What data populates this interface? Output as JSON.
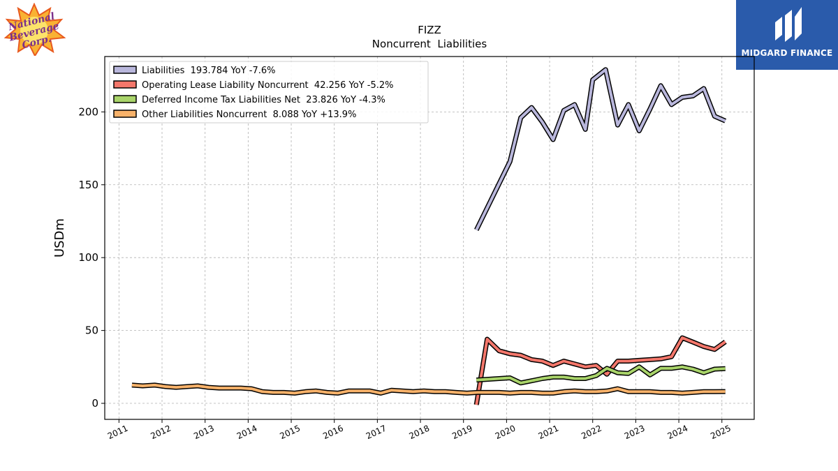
{
  "logos": {
    "left_brand": "National Beverage Corp.",
    "right_brand": "MIDGARD FINANCE"
  },
  "colors": {
    "liabilities": "#b9b7dc",
    "operating_lease": "#f4776b",
    "deferred_tax": "#a9d46a",
    "other": "#f8b26a",
    "brand_box": "#2a5bab"
  },
  "chart_data": {
    "type": "line",
    "title": "FIZZ",
    "subtitle": "Noncurrent  Liabilities",
    "xlabel": "",
    "ylabel": "USDm",
    "xlim": [
      2010.67,
      2025.75
    ],
    "ylim": [
      -11,
      238
    ],
    "yticks": [
      0,
      50,
      100,
      150,
      200
    ],
    "xticks": [
      "2011",
      "2012",
      "2013",
      "2014",
      "2015",
      "2016",
      "2017",
      "2018",
      "2019",
      "2020",
      "2021",
      "2022",
      "2023",
      "2024",
      "2025"
    ],
    "grid": true,
    "legend_position": "top-left",
    "series": [
      {
        "name": "Liabilities",
        "legend": "Liabilities  193.784 YoY -7.6%",
        "color": "#b9b7dc",
        "x": [
          2019.3,
          2020.08,
          2020.33,
          2020.58,
          2020.83,
          2021.08,
          2021.33,
          2021.58,
          2021.83,
          2022.0,
          2022.3,
          2022.58,
          2022.83,
          2023.08,
          2023.33,
          2023.58,
          2023.83,
          2024.08,
          2024.33,
          2024.58,
          2024.83,
          2025.08
        ],
        "y": [
          119,
          166,
          196,
          203,
          193,
          181,
          201,
          205,
          188,
          222,
          229,
          191,
          205,
          187,
          202,
          218,
          205,
          210,
          211,
          216,
          197,
          193.784
        ]
      },
      {
        "name": "Operating Lease Liability Noncurrent",
        "legend": "Operating Lease Liability Noncurrent  42.256 YoY -5.2%",
        "color": "#f4776b",
        "x": [
          2019.3,
          2019.55,
          2019.83,
          2020.08,
          2020.33,
          2020.58,
          2020.83,
          2021.08,
          2021.33,
          2021.58,
          2021.83,
          2022.08,
          2022.33,
          2022.58,
          2022.83,
          2023.08,
          2023.33,
          2023.58,
          2023.83,
          2024.08,
          2024.33,
          2024.58,
          2024.83,
          2025.08
        ],
        "y": [
          -1,
          44,
          36,
          34,
          33,
          30,
          29,
          26,
          29,
          27,
          25,
          26,
          20,
          29,
          29,
          29.5,
          30,
          30.5,
          32,
          45,
          42,
          39,
          37,
          42.256
        ]
      },
      {
        "name": "Deferred Income Tax Liabilities Net",
        "legend": "Deferred Income Tax Liabilities Net  23.826 YoY -4.3%",
        "color": "#a9d46a",
        "x": [
          2019.3,
          2019.55,
          2019.83,
          2020.08,
          2020.33,
          2020.58,
          2020.83,
          2021.08,
          2021.33,
          2021.58,
          2021.83,
          2022.08,
          2022.33,
          2022.58,
          2022.83,
          2023.08,
          2023.33,
          2023.58,
          2023.83,
          2024.08,
          2024.33,
          2024.58,
          2024.83,
          2025.08
        ],
        "y": [
          16,
          16.5,
          17,
          17.5,
          14,
          15.5,
          17,
          18,
          18,
          17,
          17,
          19,
          24,
          21,
          20.5,
          25,
          19.5,
          24,
          24,
          25,
          23.5,
          21,
          23.5,
          23.826
        ]
      },
      {
        "name": "Other Liabilities Noncurrent",
        "legend": "Other Liabilities Noncurrent  8.088 YoY +13.9%",
        "color": "#f8b26a",
        "x": [
          2011.3,
          2011.55,
          2011.83,
          2012.08,
          2012.33,
          2012.58,
          2012.83,
          2013.08,
          2013.33,
          2013.58,
          2013.83,
          2014.08,
          2014.33,
          2014.58,
          2014.83,
          2015.08,
          2015.33,
          2015.58,
          2015.83,
          2016.08,
          2016.33,
          2016.58,
          2016.83,
          2017.08,
          2017.33,
          2017.58,
          2017.83,
          2018.08,
          2018.33,
          2018.58,
          2018.83,
          2019.08,
          2019.33,
          2019.58,
          2019.83,
          2020.08,
          2020.33,
          2020.58,
          2020.83,
          2021.08,
          2021.33,
          2021.58,
          2021.83,
          2022.08,
          2022.33,
          2022.58,
          2022.83,
          2023.08,
          2023.33,
          2023.58,
          2023.83,
          2024.08,
          2024.33,
          2024.58,
          2024.83,
          2025.08
        ],
        "y": [
          12.5,
          12,
          12.5,
          11.5,
          11,
          11.5,
          12,
          11,
          10.5,
          10.5,
          10.5,
          10,
          8,
          7.5,
          7.5,
          7,
          8,
          8.5,
          7.5,
          7,
          8.5,
          8.5,
          8.5,
          7,
          9,
          8.5,
          8,
          8.5,
          8,
          8,
          7.5,
          7,
          7.5,
          7.5,
          7.5,
          7,
          7.5,
          7.5,
          7,
          7,
          8,
          8.5,
          8,
          8,
          8.5,
          10,
          8,
          8,
          8,
          7.5,
          7.5,
          7,
          7.5,
          8,
          8,
          8.088
        ]
      }
    ]
  }
}
